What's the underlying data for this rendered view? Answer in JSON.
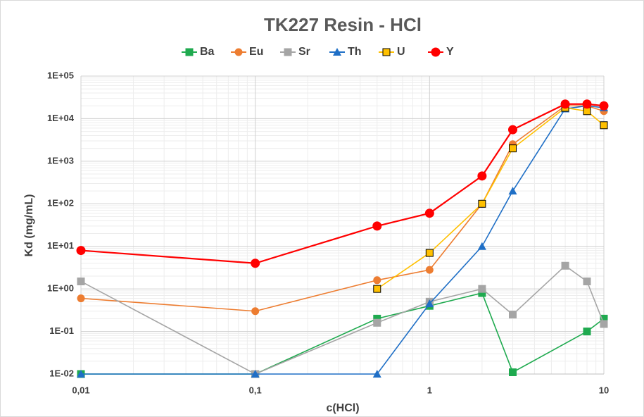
{
  "chart_data": {
    "type": "line",
    "title": "TK227 Resin - HCl",
    "x_label": "c(HCl)",
    "y_label": "Kd (mg/mL)",
    "x": [
      0.01,
      0.1,
      0.5,
      1,
      2,
      3,
      6,
      8,
      10
    ],
    "series": [
      {
        "name": "Ba",
        "color": "#1faa4f",
        "marker": "square",
        "values": [
          0.01,
          0.01,
          0.2,
          0.4,
          0.8,
          0.011,
          null,
          0.1,
          0.2
        ]
      },
      {
        "name": "Eu",
        "color": "#ed7d31",
        "marker": "circle",
        "values": [
          0.6,
          0.3,
          1.6,
          2.8,
          100,
          2500,
          20000,
          20000,
          15000
        ]
      },
      {
        "name": "Sr",
        "color": "#a5a5a5",
        "marker": "square",
        "values": [
          1.5,
          0.01,
          0.16,
          0.5,
          1,
          0.25,
          3.5,
          1.5,
          0.15
        ]
      },
      {
        "name": "Th",
        "color": "#1f6fc6",
        "marker": "triangle",
        "values": [
          0.01,
          0.01,
          0.01,
          0.45,
          10,
          200,
          17000,
          20000,
          18000
        ]
      },
      {
        "name": "U",
        "color": "#ffc000",
        "marker": "square-outlined",
        "values": [
          null,
          null,
          1,
          7,
          100,
          2000,
          18000,
          15000,
          7000
        ]
      },
      {
        "name": "Y",
        "color": "#ff0000",
        "marker": "big-circle",
        "values": [
          8,
          4,
          30,
          60,
          450,
          5500,
          22000,
          22000,
          20000
        ]
      }
    ],
    "xlog": true,
    "ylog": true,
    "xlim": [
      0.01,
      10
    ],
    "ylim": [
      0.01,
      100000
    ],
    "xticks": [
      {
        "value": 0.01,
        "label": "0,01"
      },
      {
        "value": 0.1,
        "label": "0,1"
      },
      {
        "value": 1,
        "label": "1"
      },
      {
        "value": 10,
        "label": "10"
      }
    ],
    "yticks": [
      {
        "value": 0.01,
        "label": "1E-02"
      },
      {
        "value": 0.1,
        "label": "1E-01"
      },
      {
        "value": 1,
        "label": "1E+00"
      },
      {
        "value": 10,
        "label": "1E+01"
      },
      {
        "value": 100,
        "label": "1E+02"
      },
      {
        "value": 1000,
        "label": "1E+03"
      },
      {
        "value": 10000,
        "label": "1E+04"
      },
      {
        "value": 100000,
        "label": "1E+05"
      }
    ],
    "grid": true,
    "minor_grid": true,
    "legend": "top"
  }
}
